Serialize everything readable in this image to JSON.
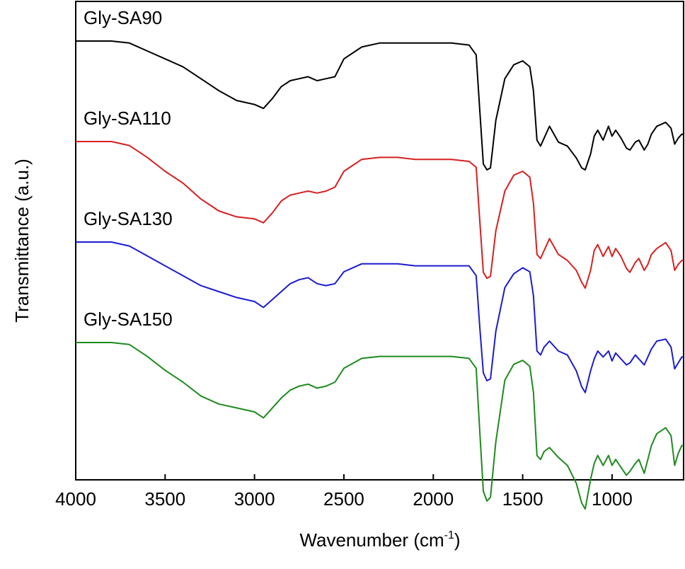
{
  "chart_data": {
    "type": "line",
    "title": "",
    "xlabel": "Wavenumber (cm",
    "xlabel_sup": "-1",
    "xlabel_close": ")",
    "ylabel": "Transmittance (a.u.)",
    "xlim": [
      4000,
      600
    ],
    "x_reversed": true,
    "y_ticks_shown": false,
    "x_ticks": [
      4000,
      3500,
      3000,
      2500,
      2000,
      1500,
      1000
    ],
    "x_tick_labels": [
      "4000",
      "3500",
      "3000",
      "2500",
      "2000",
      "1500",
      "1000"
    ],
    "grid": false,
    "legend": "none",
    "series": [
      {
        "name": "Gly-SA90",
        "color": "#000000",
        "offset": 3,
        "x": [
          4000,
          3800,
          3700,
          3600,
          3500,
          3400,
          3300,
          3200,
          3100,
          3000,
          2950,
          2900,
          2850,
          2800,
          2750,
          2700,
          2650,
          2600,
          2550,
          2500,
          2400,
          2300,
          2200,
          2100,
          2000,
          1900,
          1800,
          1760,
          1740,
          1720,
          1700,
          1680,
          1650,
          1600,
          1550,
          1500,
          1460,
          1440,
          1420,
          1400,
          1380,
          1350,
          1300,
          1250,
          1200,
          1170,
          1150,
          1120,
          1100,
          1080,
          1050,
          1020,
          1000,
          980,
          950,
          920,
          900,
          870,
          850,
          820,
          800,
          780,
          750,
          700,
          670,
          650,
          630,
          610,
          600
        ],
        "y": [
          0.95,
          0.95,
          0.94,
          0.9,
          0.86,
          0.82,
          0.76,
          0.7,
          0.65,
          0.63,
          0.61,
          0.66,
          0.72,
          0.75,
          0.76,
          0.77,
          0.75,
          0.76,
          0.77,
          0.86,
          0.92,
          0.94,
          0.94,
          0.94,
          0.94,
          0.94,
          0.93,
          0.88,
          0.6,
          0.33,
          0.3,
          0.31,
          0.55,
          0.76,
          0.83,
          0.85,
          0.82,
          0.7,
          0.45,
          0.42,
          0.46,
          0.52,
          0.44,
          0.42,
          0.36,
          0.31,
          0.3,
          0.38,
          0.47,
          0.5,
          0.45,
          0.52,
          0.47,
          0.5,
          0.46,
          0.41,
          0.4,
          0.44,
          0.45,
          0.4,
          0.43,
          0.48,
          0.52,
          0.54,
          0.51,
          0.43,
          0.46,
          0.48,
          0.48
        ]
      },
      {
        "name": "Gly-SA110",
        "color": "#d62020",
        "offset": 2,
        "x": [
          4000,
          3800,
          3700,
          3600,
          3500,
          3400,
          3300,
          3200,
          3100,
          3000,
          2950,
          2900,
          2850,
          2800,
          2750,
          2700,
          2650,
          2600,
          2550,
          2500,
          2400,
          2300,
          2200,
          2100,
          2000,
          1900,
          1800,
          1760,
          1740,
          1720,
          1700,
          1680,
          1650,
          1600,
          1550,
          1500,
          1460,
          1440,
          1420,
          1400,
          1380,
          1350,
          1300,
          1250,
          1200,
          1170,
          1150,
          1120,
          1100,
          1080,
          1050,
          1020,
          1000,
          980,
          950,
          920,
          900,
          870,
          850,
          820,
          800,
          780,
          750,
          700,
          670,
          650,
          630,
          610,
          600
        ],
        "y": [
          0.95,
          0.95,
          0.93,
          0.87,
          0.8,
          0.74,
          0.66,
          0.6,
          0.57,
          0.56,
          0.54,
          0.59,
          0.65,
          0.68,
          0.69,
          0.7,
          0.69,
          0.7,
          0.72,
          0.8,
          0.86,
          0.87,
          0.87,
          0.86,
          0.86,
          0.86,
          0.85,
          0.82,
          0.55,
          0.29,
          0.26,
          0.27,
          0.5,
          0.7,
          0.78,
          0.8,
          0.77,
          0.64,
          0.38,
          0.36,
          0.4,
          0.46,
          0.38,
          0.35,
          0.3,
          0.24,
          0.21,
          0.3,
          0.4,
          0.43,
          0.37,
          0.42,
          0.37,
          0.41,
          0.37,
          0.31,
          0.29,
          0.34,
          0.36,
          0.3,
          0.33,
          0.38,
          0.41,
          0.44,
          0.4,
          0.3,
          0.33,
          0.35,
          0.35
        ]
      },
      {
        "name": "Gly-SA13₀",
        "label_text": "Gly-SA130",
        "color": "#1c1ccf",
        "offset": 1,
        "x": [
          4000,
          3800,
          3700,
          3600,
          3500,
          3400,
          3300,
          3200,
          3100,
          3000,
          2950,
          2900,
          2850,
          2800,
          2750,
          2700,
          2650,
          2600,
          2550,
          2500,
          2400,
          2300,
          2200,
          2100,
          2000,
          1900,
          1800,
          1760,
          1740,
          1720,
          1700,
          1680,
          1650,
          1600,
          1550,
          1500,
          1460,
          1440,
          1420,
          1400,
          1380,
          1350,
          1300,
          1250,
          1200,
          1170,
          1150,
          1120,
          1100,
          1080,
          1050,
          1020,
          1000,
          980,
          950,
          920,
          900,
          870,
          850,
          820,
          800,
          780,
          750,
          700,
          670,
          650,
          630,
          610,
          600
        ],
        "y": [
          0.95,
          0.95,
          0.93,
          0.88,
          0.83,
          0.78,
          0.73,
          0.7,
          0.67,
          0.65,
          0.62,
          0.66,
          0.7,
          0.74,
          0.76,
          0.77,
          0.74,
          0.73,
          0.74,
          0.8,
          0.84,
          0.84,
          0.84,
          0.83,
          0.83,
          0.83,
          0.83,
          0.78,
          0.52,
          0.29,
          0.25,
          0.26,
          0.5,
          0.72,
          0.79,
          0.82,
          0.8,
          0.68,
          0.4,
          0.38,
          0.42,
          0.45,
          0.4,
          0.38,
          0.3,
          0.22,
          0.19,
          0.3,
          0.36,
          0.4,
          0.37,
          0.4,
          0.35,
          0.39,
          0.36,
          0.33,
          0.34,
          0.38,
          0.36,
          0.33,
          0.37,
          0.41,
          0.45,
          0.46,
          0.42,
          0.31,
          0.34,
          0.37,
          0.37
        ]
      },
      {
        "name": "Gly-SA150",
        "color": "#1f8a1f",
        "offset": 0,
        "x": [
          4000,
          3800,
          3700,
          3600,
          3500,
          3400,
          3300,
          3200,
          3100,
          3000,
          2950,
          2900,
          2850,
          2800,
          2750,
          2700,
          2650,
          2600,
          2550,
          2500,
          2400,
          2300,
          2200,
          2100,
          2000,
          1900,
          1800,
          1760,
          1740,
          1720,
          1700,
          1680,
          1650,
          1600,
          1550,
          1500,
          1460,
          1440,
          1420,
          1400,
          1380,
          1350,
          1300,
          1250,
          1200,
          1170,
          1150,
          1120,
          1100,
          1080,
          1050,
          1020,
          1000,
          980,
          950,
          920,
          900,
          870,
          850,
          820,
          800,
          780,
          750,
          700,
          670,
          650,
          630,
          610,
          600
        ],
        "y": [
          0.95,
          0.95,
          0.94,
          0.88,
          0.81,
          0.75,
          0.68,
          0.64,
          0.62,
          0.6,
          0.57,
          0.62,
          0.67,
          0.71,
          0.73,
          0.74,
          0.72,
          0.73,
          0.75,
          0.82,
          0.87,
          0.88,
          0.88,
          0.88,
          0.88,
          0.88,
          0.87,
          0.82,
          0.5,
          0.2,
          0.15,
          0.17,
          0.45,
          0.76,
          0.84,
          0.86,
          0.83,
          0.7,
          0.38,
          0.36,
          0.4,
          0.42,
          0.37,
          0.33,
          0.24,
          0.14,
          0.11,
          0.26,
          0.34,
          0.38,
          0.33,
          0.38,
          0.33,
          0.36,
          0.32,
          0.28,
          0.3,
          0.34,
          0.36,
          0.29,
          0.36,
          0.43,
          0.49,
          0.52,
          0.48,
          0.33,
          0.39,
          0.43,
          0.43
        ]
      }
    ]
  }
}
